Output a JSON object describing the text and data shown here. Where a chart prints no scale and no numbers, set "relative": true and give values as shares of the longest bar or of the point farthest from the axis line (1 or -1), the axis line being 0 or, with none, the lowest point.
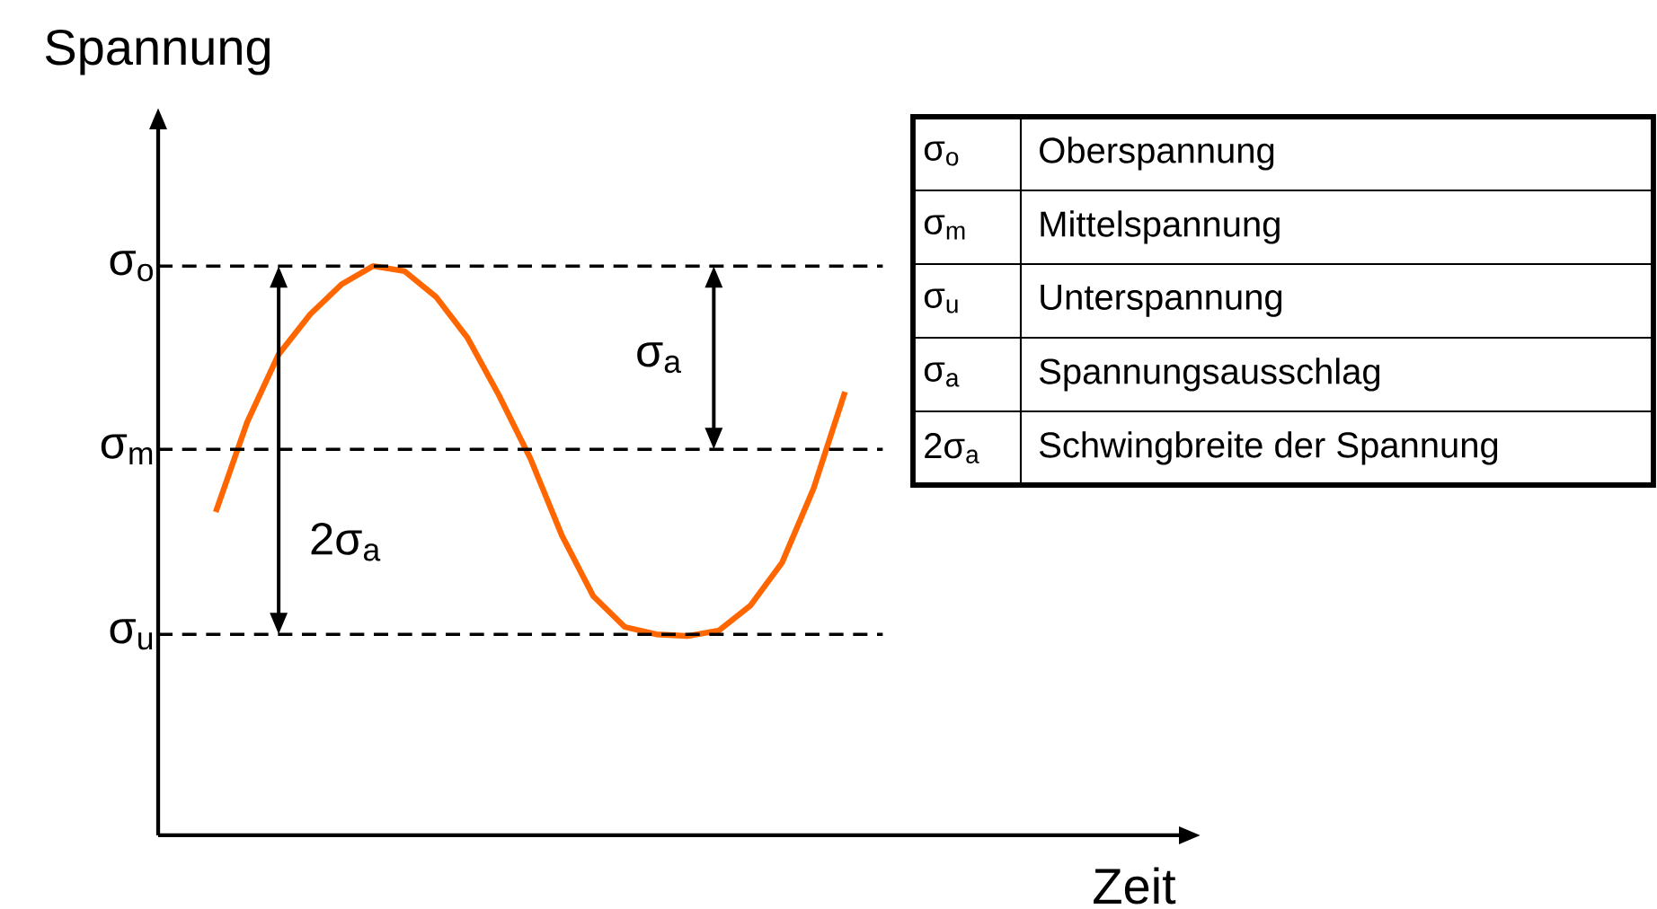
{
  "chart_data": {
    "type": "line",
    "relative": true,
    "xlabel": "Zeit",
    "ylabel": "Spannung",
    "color": "#ff6600",
    "categories": [
      null,
      null,
      null,
      null,
      null,
      null,
      null,
      null,
      null,
      null,
      null,
      null,
      null,
      null,
      null,
      null,
      null,
      null,
      null,
      null,
      null
    ],
    "values": [
      0.568,
      0.726,
      0.845,
      0.915,
      0.968,
      1.0,
      0.991,
      0.946,
      0.874,
      0.773,
      0.662,
      0.527,
      0.42,
      0.366,
      0.353,
      0.35,
      0.36,
      0.404,
      0.479,
      0.609,
      0.779
    ],
    "ref_lines": [
      {
        "axis": "y",
        "value": 1.0,
        "label": "σ$_{o}$",
        "line_style": "dashed"
      },
      {
        "axis": "y",
        "value": 0.678,
        "label": "σ$_{m}$",
        "line_style": "dashed"
      },
      {
        "axis": "y",
        "value": 0.353,
        "label": "σ$_{u}$",
        "line_style": "dashed"
      }
    ],
    "annotations": [
      "σ$_{a}$",
      "2σ$_{a}$",
      "σ$_{o}$",
      "Oberspannung",
      "σ$_{m}$",
      "Mittelspannung",
      "σ$_{u}$",
      "Unterspannung",
      "σ$_{a}$",
      "Spannungsausschlag",
      "2σ$_{a}$",
      "Schwingbreite der Spannung"
    ]
  }
}
